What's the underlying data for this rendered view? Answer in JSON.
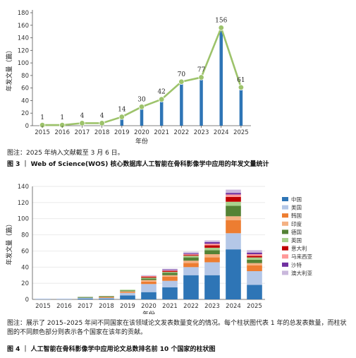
{
  "figure3": {
    "chart_data": {
      "type": "bar",
      "categories": [
        "2015",
        "2016",
        "2017",
        "2018",
        "2019",
        "2020",
        "2021",
        "2022",
        "2023",
        "2024",
        "2025"
      ],
      "values": [
        1,
        1,
        4,
        4,
        14,
        30,
        42,
        70,
        77,
        156,
        61
      ],
      "value_labels": [
        "1",
        "1",
        "4",
        "4",
        "14",
        "30",
        "42",
        "70",
        "77",
        "156",
        "61"
      ],
      "ylim": [
        0,
        180
      ],
      "yticks": [
        "0",
        "20",
        "40",
        "60",
        "80",
        "100",
        "120",
        "140",
        "160",
        "180"
      ],
      "xlabel": "年份",
      "ylabel": "年发文量（篇）",
      "bar_color": "#2e75b6",
      "line_color": "#9dc36b"
    },
    "note": "图注：2025 年纳入文献截至 3 月 6 日。",
    "caption": "图 3 ｜ Web of Science(WOS) 核心数据库人工智能在骨科影像学中应用的年发文量统计"
  },
  "figure4": {
    "chart_data": {
      "type": "bar",
      "stacked": true,
      "categories": [
        "2015",
        "2016",
        "2017",
        "2018",
        "2019",
        "2020",
        "2021",
        "2022",
        "2023",
        "2024",
        "2025"
      ],
      "ylim": [
        0,
        140
      ],
      "yticks": [
        "0",
        "20",
        "40",
        "60",
        "80",
        "100",
        "120",
        "140"
      ],
      "xlabel": "年份",
      "ylabel": "年发文量（篇）",
      "legend_position": "right",
      "series": [
        {
          "name": "中国",
          "color": "#2e75b6",
          "values": [
            0,
            0,
            1,
            1,
            5,
            9,
            15,
            30,
            30,
            62,
            18
          ]
        },
        {
          "name": "美国",
          "color": "#b4c7e7",
          "values": [
            1,
            1,
            1,
            1,
            3,
            10,
            8,
            10,
            16,
            20,
            17
          ]
        },
        {
          "name": "韩国",
          "color": "#ed7d31",
          "values": [
            0,
            0,
            0,
            1,
            1,
            3,
            5,
            5,
            6,
            16,
            7
          ]
        },
        {
          "name": "印度",
          "color": "#f4b183",
          "values": [
            0,
            0,
            0,
            0,
            1,
            2,
            2,
            3,
            4,
            5,
            3
          ]
        },
        {
          "name": "德国",
          "color": "#548235",
          "values": [
            0,
            0,
            1,
            1,
            1,
            2,
            3,
            4,
            5,
            13,
            4
          ]
        },
        {
          "name": "英国",
          "color": "#a9d18e",
          "values": [
            0,
            0,
            0,
            0,
            1,
            1,
            1,
            2,
            3,
            5,
            3
          ]
        },
        {
          "name": "意大利",
          "color": "#c00000",
          "values": [
            0,
            0,
            0,
            0,
            0,
            1,
            1,
            1,
            3,
            6,
            2
          ]
        },
        {
          "name": "马来西亚",
          "color": "#ff9999",
          "values": [
            0,
            0,
            0,
            0,
            0,
            1,
            1,
            1,
            2,
            3,
            2
          ]
        },
        {
          "name": "沙特",
          "color": "#7030a0",
          "values": [
            0,
            0,
            0,
            0,
            0,
            0,
            1,
            1,
            2,
            2,
            2
          ]
        },
        {
          "name": "澳大利亚",
          "color": "#c9b8dc",
          "values": [
            0,
            0,
            0,
            0,
            0,
            1,
            1,
            2,
            2,
            4,
            3
          ]
        }
      ]
    },
    "note": "图注：展示了 2015–2025 年间不同国家在该领域论文发表数量变化的情况。每个柱状图代表 1 年的总发表数量，而柱状图的不同颜色部分则表示各个国家在该年的贡献。",
    "caption": "图 4 ｜ 人工智能在骨科影像学中应用论文总数排名前 10 个国家的柱状图"
  }
}
